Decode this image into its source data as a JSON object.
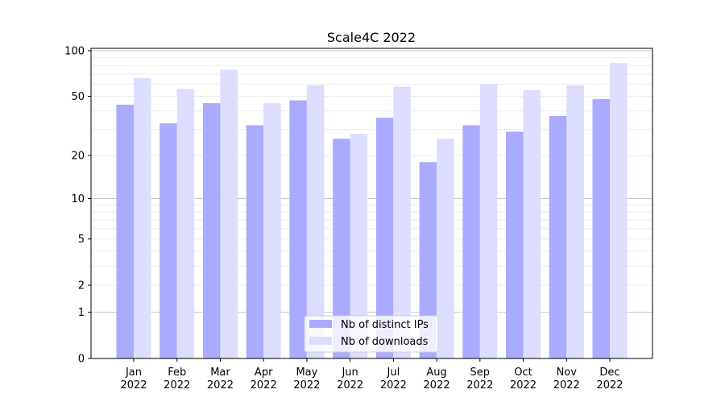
{
  "chart_data": {
    "type": "bar",
    "title": "Scale4C 2022",
    "xlabel": "",
    "ylabel": "",
    "yscale": "log(1+y)",
    "ylim": [
      0,
      105
    ],
    "yticks": [
      0,
      1,
      2,
      5,
      10,
      20,
      50,
      100
    ],
    "grid": true,
    "legend_position": "bottom-center",
    "categories": [
      "Jan\n2022",
      "Feb\n2022",
      "Mar\n2022",
      "Apr\n2022",
      "May\n2022",
      "Jun\n2022",
      "Jul\n2022",
      "Aug\n2022",
      "Sep\n2022",
      "Oct\n2022",
      "Nov\n2022",
      "Dec\n2022"
    ],
    "series": [
      {
        "name": "Nb of distinct IPs",
        "color": "#aaaaff",
        "values": [
          44,
          33,
          45,
          32,
          47,
          26,
          36,
          18,
          32,
          29,
          37,
          48
        ]
      },
      {
        "name": "Nb of downloads",
        "color": "#ddddff",
        "values": [
          66,
          56,
          75,
          45,
          59,
          28,
          58,
          26,
          60,
          55,
          59,
          83
        ]
      }
    ]
  }
}
